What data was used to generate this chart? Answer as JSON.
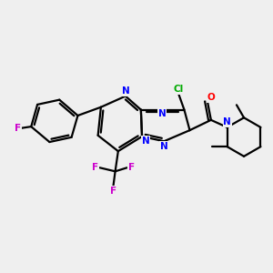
{
  "bg_color": "#efefef",
  "bond_color": "#000000",
  "N_color": "#0000ff",
  "O_color": "#ff0000",
  "F_color": "#cc00cc",
  "Cl_color": "#00aa00",
  "lw": 1.6,
  "figsize": [
    3.0,
    3.0
  ],
  "dpi": 100,
  "xlim": [
    -3.5,
    3.8
  ],
  "ylim": [
    -2.8,
    2.5
  ]
}
